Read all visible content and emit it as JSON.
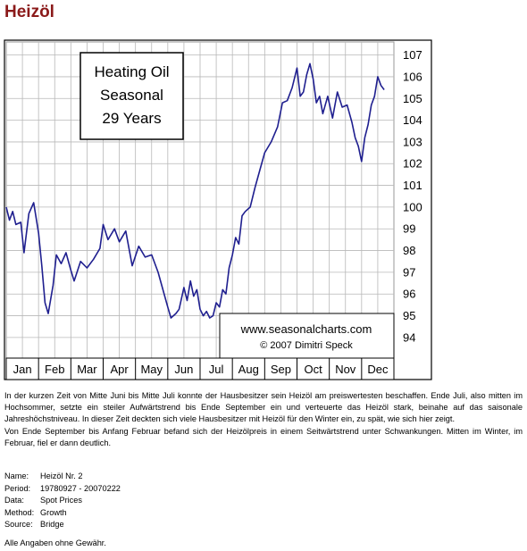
{
  "page": {
    "title": "Heizöl"
  },
  "chart_data": {
    "type": "line",
    "title_box": [
      "Heating Oil",
      "Seasonal",
      "29 Years"
    ],
    "credit": [
      "www.seasonalcharts.com",
      "© 2007  Dimitri Speck"
    ],
    "months": [
      "Jan",
      "Feb",
      "Mar",
      "Apr",
      "May",
      "Jun",
      "Jul",
      "Aug",
      "Sep",
      "Oct",
      "Nov",
      "Dec"
    ],
    "y_ticks": [
      94,
      95,
      96,
      97,
      98,
      99,
      100,
      101,
      102,
      103,
      104,
      105,
      106,
      107
    ],
    "ylim": [
      93.05,
      107.6
    ],
    "xlim": [
      0,
      12
    ],
    "grid": true,
    "series": [
      {
        "color": "#1f1f8f",
        "x": [
          0,
          0.1,
          0.2,
          0.3,
          0.45,
          0.55,
          0.7,
          0.85,
          1.0,
          1.1,
          1.2,
          1.3,
          1.45,
          1.55,
          1.7,
          1.85,
          2.0,
          2.1,
          2.3,
          2.5,
          2.7,
          2.9,
          3.0,
          3.15,
          3.35,
          3.5,
          3.7,
          3.9,
          4.1,
          4.3,
          4.5,
          4.7,
          4.85,
          5.0,
          5.1,
          5.25,
          5.35,
          5.5,
          5.6,
          5.7,
          5.8,
          5.9,
          6.0,
          6.1,
          6.2,
          6.3,
          6.4,
          6.5,
          6.6,
          6.7,
          6.8,
          6.9,
          7.0,
          7.1,
          7.2,
          7.3,
          7.4,
          7.55,
          7.7,
          7.85,
          8.0,
          8.2,
          8.4,
          8.55,
          8.7,
          8.85,
          9.0,
          9.1,
          9.2,
          9.3,
          9.4,
          9.5,
          9.6,
          9.7,
          9.8,
          9.95,
          10.1,
          10.25,
          10.4,
          10.55,
          10.7,
          10.8,
          10.9,
          11.0,
          11.1,
          11.2,
          11.3,
          11.4,
          11.5,
          11.6,
          11.7
        ],
        "y": [
          100.0,
          99.4,
          99.8,
          99.2,
          99.3,
          97.9,
          99.7,
          100.2,
          98.8,
          97.3,
          95.6,
          95.1,
          96.4,
          97.8,
          97.4,
          97.9,
          97.1,
          96.6,
          97.5,
          97.2,
          97.6,
          98.1,
          99.2,
          98.5,
          99.0,
          98.4,
          98.9,
          97.3,
          98.2,
          97.7,
          97.8,
          97.0,
          96.2,
          95.4,
          94.9,
          95.1,
          95.3,
          96.3,
          95.7,
          96.6,
          95.9,
          96.2,
          95.3,
          95.0,
          95.2,
          94.9,
          95.0,
          95.6,
          95.4,
          96.2,
          96.0,
          97.2,
          97.8,
          98.6,
          98.3,
          99.6,
          99.8,
          100.0,
          100.9,
          101.7,
          102.5,
          103.0,
          103.7,
          104.8,
          104.9,
          105.5,
          106.4,
          105.1,
          105.3,
          106.1,
          106.6,
          105.9,
          104.8,
          105.1,
          104.3,
          105.1,
          104.1,
          105.3,
          104.6,
          104.7,
          103.9,
          103.2,
          102.8,
          102.1,
          103.2,
          103.8,
          104.7,
          105.1,
          106.0,
          105.6,
          105.4
        ]
      }
    ]
  },
  "description": {
    "paragraph_1": "In der kurzen Zeit von Mitte Juni bis Mitte Juli konnte der Hausbesitzer sein Heizöl am preiswertesten beschaffen. Ende Juli, also mitten im Hochsommer, setzte ein steiler Aufwärtstrend bis Ende September ein und verteuerte das Heizöl stark, beinahe auf das saisonale Jahreshöchstniveau. In dieser Zeit deckten sich viele Hausbesitzer mit Heizöl für den Winter ein, zu spät, wie sich hier zeigt.",
    "paragraph_2": "Von Ende September bis Anfang Februar befand sich der Heizölpreis in einem Seitwärtstrend unter Schwankungen. Mitten im Winter, im Februar, fiel er dann deutlich."
  },
  "meta": {
    "name_label": "Name:",
    "name_value": "Heizöl Nr. 2",
    "period_label": "Period:",
    "period_value": "19780927 - 20070222",
    "data_label": "Data:",
    "data_value": "Spot Prices",
    "method_label": "Method:",
    "method_value": "Growth",
    "source_label": "Source:",
    "source_value": "Bridge"
  },
  "disclaimer": "Alle Angaben ohne Gewähr."
}
